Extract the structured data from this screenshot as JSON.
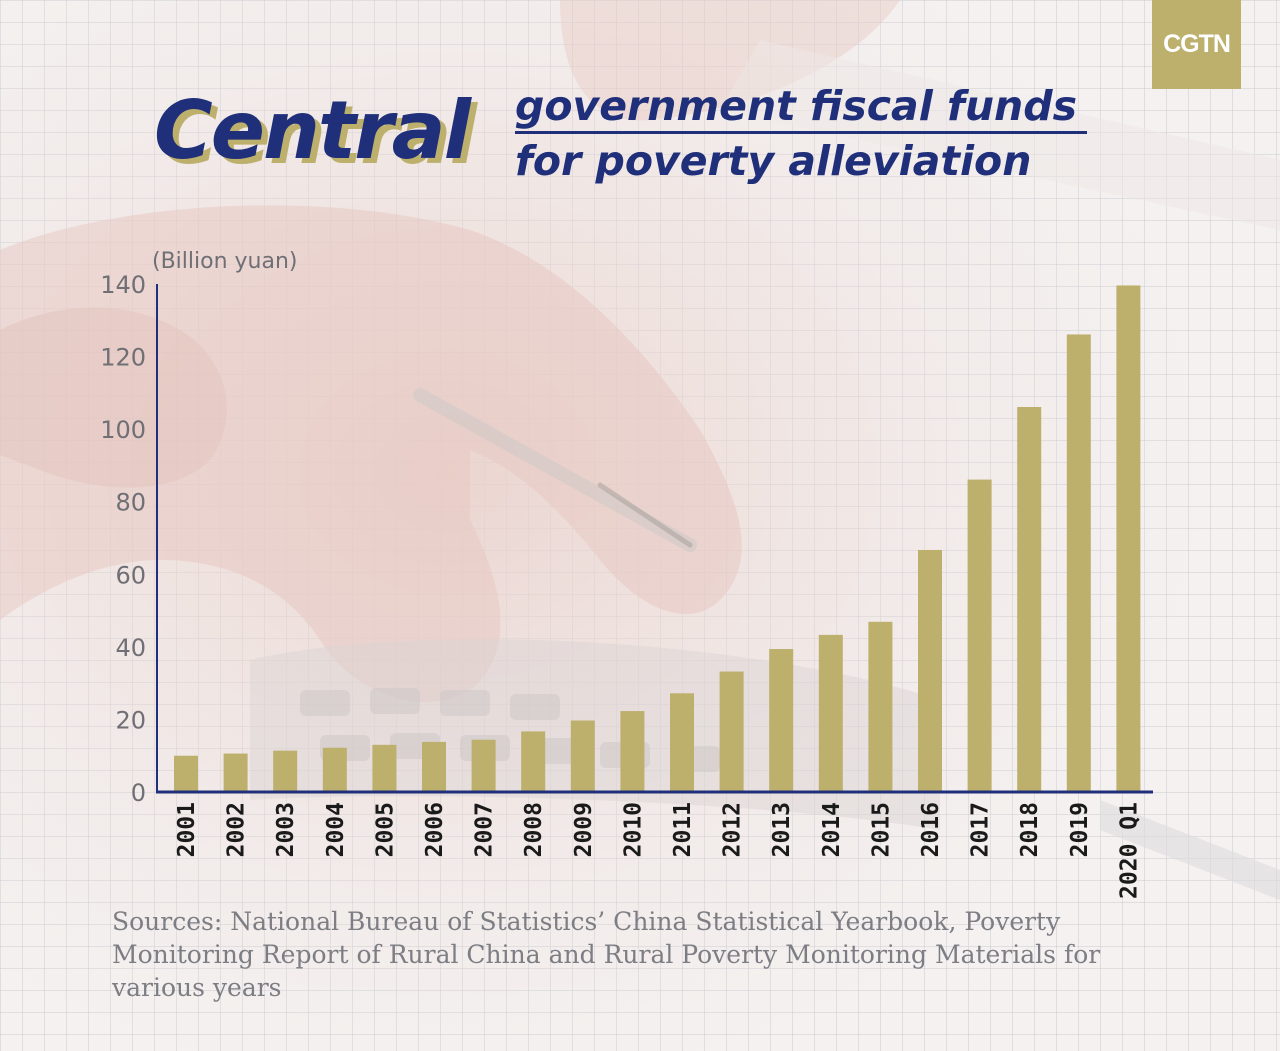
{
  "logo": {
    "text": "CGTN"
  },
  "title": {
    "main": "Central",
    "line1": "government fiscal funds",
    "line2": "for poverty alleviation"
  },
  "colors": {
    "bar": "#bdaf6c",
    "title": "#1f2f7a",
    "axis": "#1f2f7a",
    "logo_bg": "#bdaf6c"
  },
  "chart_data": {
    "type": "bar",
    "title": "Central government fiscal funds for poverty alleviation",
    "xlabel": "",
    "ylabel": "(Billion yuan)",
    "ylim": [
      0,
      140
    ],
    "yticks": [
      0,
      20,
      40,
      60,
      80,
      100,
      120,
      140
    ],
    "grid": false,
    "categories": [
      "2001",
      "2002",
      "2003",
      "2004",
      "2005",
      "2006",
      "2007",
      "2008",
      "2009",
      "2010",
      "2011",
      "2012",
      "2013",
      "2014",
      "2015",
      "2016",
      "2017",
      "2018",
      "2019",
      "2020 Q1"
    ],
    "values": [
      10.0,
      10.6,
      11.4,
      12.2,
      13.0,
      13.8,
      14.4,
      16.7,
      19.7,
      22.3,
      27.2,
      33.2,
      39.4,
      43.3,
      46.9,
      66.7,
      86.1,
      106.1,
      126.1,
      139.6
    ]
  },
  "sources": "Sources: National Bureau of Statistics’ China Statistical Yearbook, Poverty Monitoring Report of Rural China and Rural Poverty Monitoring Materials for various years"
}
